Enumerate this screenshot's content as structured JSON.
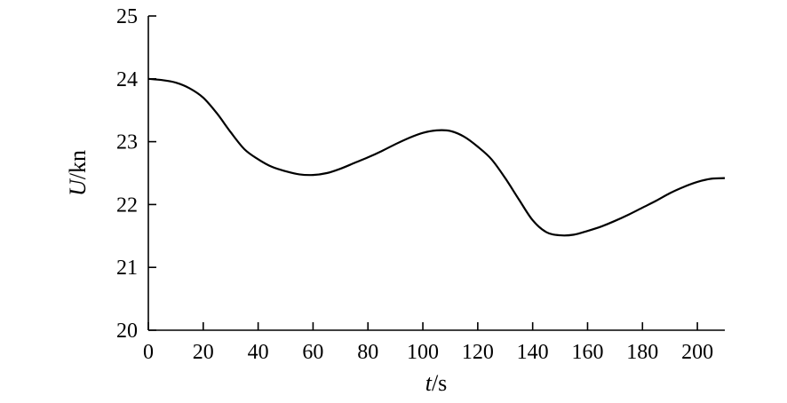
{
  "chart_data": {
    "type": "line",
    "title": "",
    "xlabel": "t/s",
    "xlabel_italic": "t",
    "xlabel_rest": "/s",
    "ylabel": "U/kn",
    "ylabel_italic": "U",
    "ylabel_rest": "/kn",
    "xlim": [
      0,
      210
    ],
    "ylim": [
      20,
      25
    ],
    "xticks": [
      0,
      20,
      40,
      60,
      80,
      100,
      120,
      140,
      160,
      180,
      200
    ],
    "yticks": [
      20,
      21,
      22,
      23,
      24,
      25
    ],
    "grid": false,
    "legend": "none",
    "line_color": "#000000",
    "series": [
      {
        "x": [
          0,
          5,
          10,
          15,
          20,
          25,
          30,
          35,
          40,
          45,
          50,
          55,
          60,
          65,
          70,
          75,
          80,
          85,
          90,
          95,
          100,
          105,
          110,
          115,
          120,
          125,
          130,
          135,
          140,
          145,
          150,
          155,
          160,
          165,
          170,
          175,
          180,
          185,
          190,
          195,
          200,
          205,
          210
        ],
        "y": [
          24.0,
          23.98,
          23.94,
          23.85,
          23.7,
          23.45,
          23.15,
          22.88,
          22.72,
          22.6,
          22.53,
          22.48,
          22.47,
          22.5,
          22.57,
          22.66,
          22.75,
          22.85,
          22.96,
          23.06,
          23.14,
          23.18,
          23.17,
          23.08,
          22.92,
          22.72,
          22.42,
          22.08,
          21.75,
          21.56,
          21.51,
          21.52,
          21.58,
          21.65,
          21.74,
          21.84,
          21.95,
          22.06,
          22.18,
          22.28,
          22.36,
          22.41,
          22.42
        ]
      }
    ]
  }
}
